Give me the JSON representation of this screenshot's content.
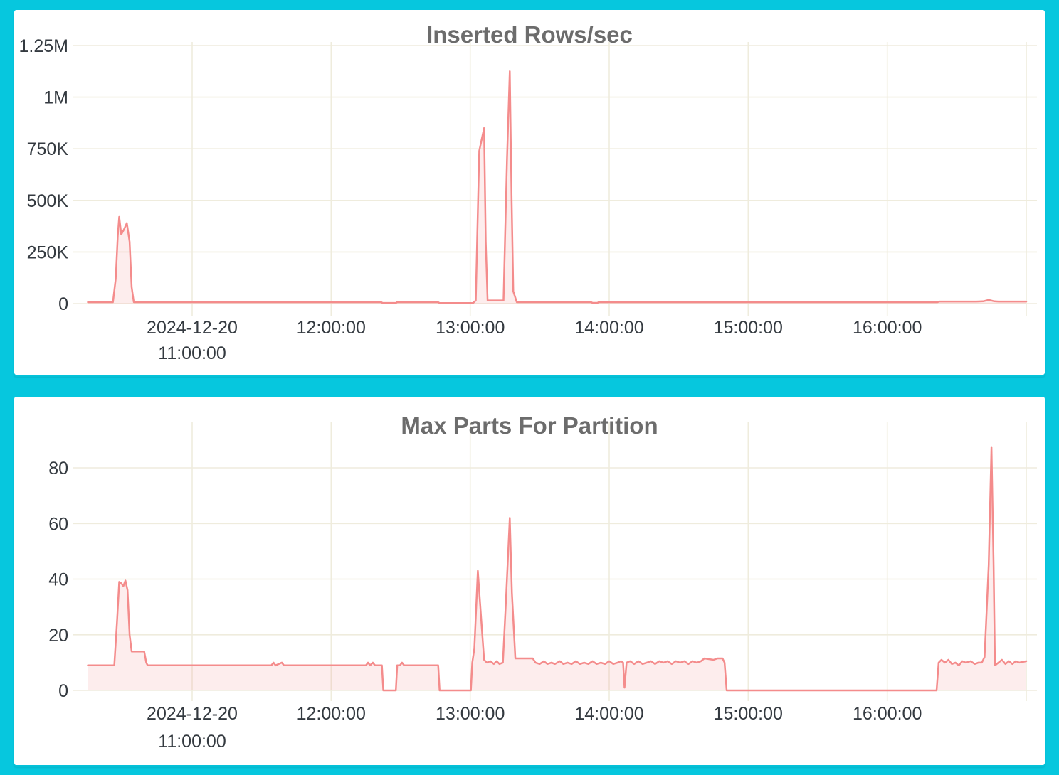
{
  "style": {
    "background_color": "#06c7de",
    "panel_color": "#ffffff",
    "grid_color": "#efecdd",
    "line_color": "#f48c8c",
    "fill_color": "rgba(244,140,140,0.16)",
    "tick_color": "#343a40",
    "title_color": "#6c6c6c"
  },
  "chart_data": [
    {
      "type": "area",
      "title": "Inserted Rows/sec",
      "xlabel": "",
      "ylabel": "",
      "x_unit": "hour of 2024-12-20",
      "x_range": [
        10.25,
        17.0
      ],
      "ylim": [
        0,
        1250000
      ],
      "grid": true,
      "legend": "none",
      "y_ticks": [
        {
          "v": 0,
          "label": "0"
        },
        {
          "v": 250000,
          "label": "250K"
        },
        {
          "v": 500000,
          "label": "500K"
        },
        {
          "v": 750000,
          "label": "750K"
        },
        {
          "v": 1000000,
          "label": "1M"
        },
        {
          "v": 1250000,
          "label": "1.25M"
        }
      ],
      "x_ticks": [
        {
          "t": 11,
          "label": "2024-12-20",
          "label2": "11:00:00"
        },
        {
          "t": 12,
          "label": "12:00:00"
        },
        {
          "t": 13,
          "label": "13:00:00"
        },
        {
          "t": 14,
          "label": "14:00:00"
        },
        {
          "t": 15,
          "label": "15:00:00"
        },
        {
          "t": 16,
          "label": "16:00:00"
        },
        {
          "t": 17,
          "label": ""
        }
      ],
      "points": [
        [
          10.25,
          7000
        ],
        [
          10.43,
          7000
        ],
        [
          10.45,
          120000
        ],
        [
          10.465,
          330000
        ],
        [
          10.475,
          420000
        ],
        [
          10.49,
          335000
        ],
        [
          10.51,
          360000
        ],
        [
          10.53,
          390000
        ],
        [
          10.55,
          300000
        ],
        [
          10.565,
          80000
        ],
        [
          10.58,
          7000
        ],
        [
          12.36,
          7000
        ],
        [
          12.37,
          3000
        ],
        [
          12.465,
          3000
        ],
        [
          12.475,
          7000
        ],
        [
          12.77,
          7000
        ],
        [
          12.78,
          2500
        ],
        [
          13.02,
          2500
        ],
        [
          13.04,
          15000
        ],
        [
          13.065,
          740000
        ],
        [
          13.1,
          850000
        ],
        [
          13.112,
          300000
        ],
        [
          13.125,
          15000
        ],
        [
          13.24,
          15000
        ],
        [
          13.265,
          700000
        ],
        [
          13.285,
          1125000
        ],
        [
          13.298,
          500000
        ],
        [
          13.31,
          60000
        ],
        [
          13.335,
          7000
        ],
        [
          13.87,
          7000
        ],
        [
          13.88,
          3500
        ],
        [
          13.915,
          3500
        ],
        [
          13.925,
          7000
        ],
        [
          16.36,
          7000
        ],
        [
          16.375,
          10000
        ],
        [
          16.64,
          10000
        ],
        [
          16.69,
          11000
        ],
        [
          16.73,
          18000
        ],
        [
          16.77,
          11000
        ],
        [
          16.8,
          10000
        ],
        [
          17.0,
          10000
        ]
      ]
    },
    {
      "type": "area",
      "title": "Max Parts For Partition",
      "xlabel": "",
      "ylabel": "",
      "x_unit": "hour of 2024-12-20",
      "x_range": [
        10.25,
        17.0
      ],
      "ylim": [
        0,
        90
      ],
      "grid": true,
      "legend": "none",
      "y_ticks": [
        {
          "v": 0,
          "label": "0"
        },
        {
          "v": 20,
          "label": "20"
        },
        {
          "v": 40,
          "label": "40"
        },
        {
          "v": 60,
          "label": "60"
        },
        {
          "v": 80,
          "label": "80"
        }
      ],
      "x_ticks": [
        {
          "t": 11,
          "label": "2024-12-20",
          "label2": "11:00:00"
        },
        {
          "t": 12,
          "label": "12:00:00"
        },
        {
          "t": 13,
          "label": "13:00:00"
        },
        {
          "t": 14,
          "label": "14:00:00"
        },
        {
          "t": 15,
          "label": "15:00:00"
        },
        {
          "t": 16,
          "label": "16:00:00"
        },
        {
          "t": 17,
          "label": ""
        }
      ],
      "points": [
        [
          10.25,
          9
        ],
        [
          10.44,
          9
        ],
        [
          10.46,
          25
        ],
        [
          10.475,
          39
        ],
        [
          10.49,
          38.5
        ],
        [
          10.505,
          37.5
        ],
        [
          10.52,
          39.5
        ],
        [
          10.535,
          36
        ],
        [
          10.55,
          20
        ],
        [
          10.565,
          14
        ],
        [
          10.655,
          14
        ],
        [
          10.67,
          10
        ],
        [
          10.68,
          9
        ],
        [
          11.57,
          9
        ],
        [
          11.585,
          10
        ],
        [
          11.6,
          9
        ],
        [
          11.645,
          10
        ],
        [
          11.66,
          9
        ],
        [
          12.25,
          9
        ],
        [
          12.265,
          10
        ],
        [
          12.28,
          9
        ],
        [
          12.3,
          10
        ],
        [
          12.315,
          9
        ],
        [
          12.365,
          9
        ],
        [
          12.375,
          0
        ],
        [
          12.465,
          0
        ],
        [
          12.475,
          9
        ],
        [
          12.495,
          9
        ],
        [
          12.51,
          10
        ],
        [
          12.525,
          9
        ],
        [
          12.77,
          9
        ],
        [
          12.78,
          0
        ],
        [
          13.005,
          0
        ],
        [
          13.015,
          10
        ],
        [
          13.03,
          15
        ],
        [
          13.055,
          43
        ],
        [
          13.08,
          25
        ],
        [
          13.1,
          11
        ],
        [
          13.12,
          10
        ],
        [
          13.145,
          10.5
        ],
        [
          13.17,
          9.5
        ],
        [
          13.19,
          10.5
        ],
        [
          13.21,
          9.5
        ],
        [
          13.235,
          10
        ],
        [
          13.255,
          30
        ],
        [
          13.285,
          62
        ],
        [
          13.3,
          35
        ],
        [
          13.325,
          11.5
        ],
        [
          13.45,
          11.5
        ],
        [
          13.47,
          10
        ],
        [
          13.5,
          9.5
        ],
        [
          13.53,
          10.5
        ],
        [
          13.555,
          9.5
        ],
        [
          13.585,
          10
        ],
        [
          13.61,
          9.5
        ],
        [
          13.645,
          10.5
        ],
        [
          13.67,
          9.5
        ],
        [
          13.7,
          10
        ],
        [
          13.73,
          9.5
        ],
        [
          13.76,
          10.5
        ],
        [
          13.79,
          9.5
        ],
        [
          13.82,
          10
        ],
        [
          13.85,
          9.5
        ],
        [
          13.88,
          10.5
        ],
        [
          13.91,
          9.5
        ],
        [
          13.94,
          10
        ],
        [
          13.97,
          9.5
        ],
        [
          14.0,
          10.5
        ],
        [
          14.03,
          9.5
        ],
        [
          14.06,
          10
        ],
        [
          14.085,
          10.5
        ],
        [
          14.1,
          10
        ],
        [
          14.11,
          1
        ],
        [
          14.125,
          10
        ],
        [
          14.15,
          10.5
        ],
        [
          14.18,
          9.5
        ],
        [
          14.21,
          10.5
        ],
        [
          14.24,
          9.5
        ],
        [
          14.27,
          10
        ],
        [
          14.3,
          10.5
        ],
        [
          14.33,
          9.5
        ],
        [
          14.36,
          10.5
        ],
        [
          14.39,
          10
        ],
        [
          14.42,
          10.5
        ],
        [
          14.45,
          9.5
        ],
        [
          14.48,
          10.5
        ],
        [
          14.51,
          10
        ],
        [
          14.54,
          10.5
        ],
        [
          14.57,
          9.5
        ],
        [
          14.6,
          10.5
        ],
        [
          14.63,
          10
        ],
        [
          14.66,
          10.5
        ],
        [
          14.685,
          11.5
        ],
        [
          14.75,
          11
        ],
        [
          14.78,
          11.5
        ],
        [
          14.815,
          11.5
        ],
        [
          14.83,
          10
        ],
        [
          14.845,
          0
        ],
        [
          16.355,
          0
        ],
        [
          16.37,
          10
        ],
        [
          16.39,
          11
        ],
        [
          16.415,
          10
        ],
        [
          16.44,
          11
        ],
        [
          16.465,
          9.5
        ],
        [
          16.49,
          10
        ],
        [
          16.515,
          9
        ],
        [
          16.54,
          10.5
        ],
        [
          16.565,
          10
        ],
        [
          16.6,
          10.5
        ],
        [
          16.63,
          9.5
        ],
        [
          16.655,
          10
        ],
        [
          16.68,
          10
        ],
        [
          16.7,
          12
        ],
        [
          16.73,
          45
        ],
        [
          16.75,
          87.5
        ],
        [
          16.765,
          45
        ],
        [
          16.775,
          9
        ],
        [
          16.8,
          10
        ],
        [
          16.825,
          11
        ],
        [
          16.85,
          9.5
        ],
        [
          16.875,
          10.5
        ],
        [
          16.9,
          9.5
        ],
        [
          16.925,
          10.5
        ],
        [
          16.95,
          10
        ],
        [
          17.0,
          10.5
        ]
      ]
    }
  ]
}
